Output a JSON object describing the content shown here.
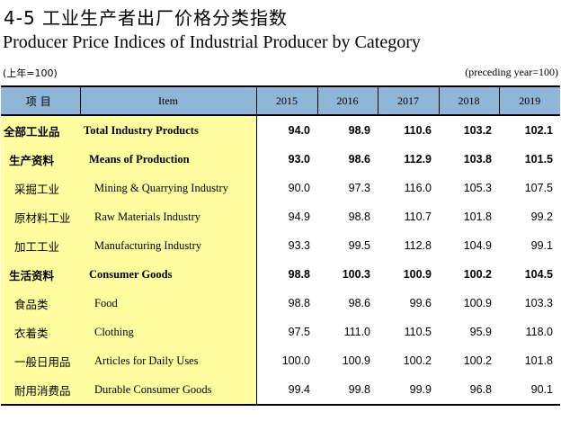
{
  "title_cn": "4-5  工业生产者出厂价格分类指数",
  "title_en": "Producer Price Indices of Industrial Producer by Category",
  "unit_cn": "(上年=100)",
  "unit_en": "(preceding year=100)",
  "header": {
    "item_cn": "项目",
    "item_en": "Item",
    "years": [
      "2015",
      "2016",
      "2017",
      "2018",
      "2019"
    ]
  },
  "rows": [
    {
      "cn": "全部工业品",
      "en": "Total Industry Products",
      "level": 0,
      "bold": true,
      "values": [
        "94.0",
        "98.9",
        "110.6",
        "103.2",
        "102.1"
      ]
    },
    {
      "cn": "生产资料",
      "en": "Means of Production",
      "level": 1,
      "bold": true,
      "values": [
        "93.0",
        "98.6",
        "112.9",
        "103.8",
        "101.5"
      ]
    },
    {
      "cn": "采掘工业",
      "en": "Mining & Quarrying Industry",
      "level": 2,
      "bold": false,
      "values": [
        "90.0",
        "97.3",
        "116.0",
        "105.3",
        "107.5"
      ]
    },
    {
      "cn": "原材料工业",
      "en": "Raw Materials Industry",
      "level": 2,
      "bold": false,
      "values": [
        "94.9",
        "98.8",
        "110.7",
        "101.8",
        "99.2"
      ]
    },
    {
      "cn": "加工工业",
      "en": "Manufacturing Industry",
      "level": 2,
      "bold": false,
      "values": [
        "93.3",
        "99.5",
        "112.8",
        "104.9",
        "99.1"
      ]
    },
    {
      "cn": "生活资料",
      "en": "Consumer Goods",
      "level": 1,
      "bold": true,
      "values": [
        "98.8",
        "100.3",
        "100.9",
        "100.2",
        "104.5"
      ]
    },
    {
      "cn": "食品类",
      "en": "Food",
      "level": 2,
      "bold": false,
      "values": [
        "98.8",
        "98.6",
        "99.6",
        "100.9",
        "103.3"
      ]
    },
    {
      "cn": "衣着类",
      "en": "Clothing",
      "level": 2,
      "bold": false,
      "values": [
        "97.5",
        "111.0",
        "110.5",
        "95.9",
        "118.0"
      ]
    },
    {
      "cn": "一般日用品",
      "en": "Articles for Daily Uses",
      "level": 2,
      "bold": false,
      "values": [
        "100.0",
        "100.9",
        "100.2",
        "100.2",
        "101.8"
      ]
    },
    {
      "cn": "耐用消费品",
      "en": "Durable Consumer Goods",
      "level": 2,
      "bold": false,
      "values": [
        "99.4",
        "99.8",
        "99.9",
        "96.8",
        "90.1"
      ]
    }
  ]
}
